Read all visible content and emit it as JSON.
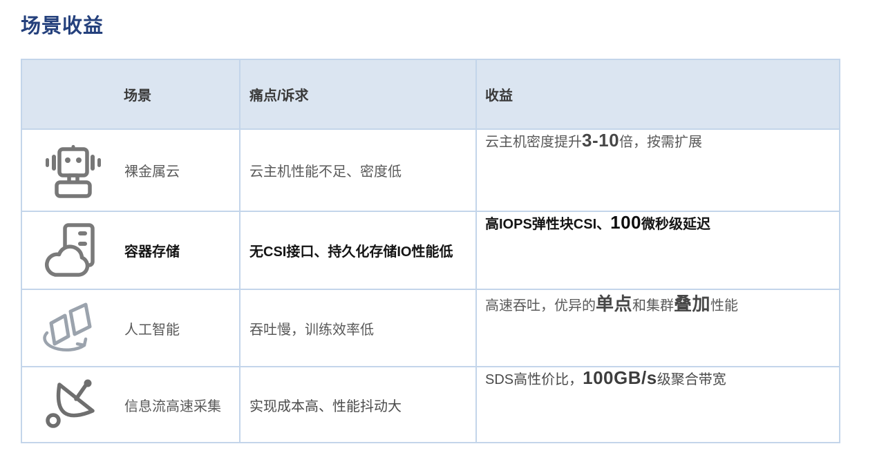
{
  "title": "场景收益",
  "colors": {
    "title": "#24407c",
    "header_bg": "#dbe5f1",
    "border": "#c3d5ea",
    "text_gray": "#595959",
    "text_dark": "#141414",
    "icon_gray": "#777777",
    "icon_light_gray": "#9ba3ad"
  },
  "table": {
    "headers": [
      "场景",
      "痛点/诉求",
      "收益"
    ],
    "rows": [
      {
        "scenario": "裸金属云",
        "icon": "robot-icon",
        "pain": "云主机性能不足、密度低",
        "benefit_segments": [
          {
            "text": "云主机密度提升",
            "bold": false
          },
          {
            "text": "3-10",
            "bold": true
          },
          {
            "text": "倍，按需扩展",
            "bold": false
          }
        ]
      },
      {
        "scenario": "容器存储",
        "icon": "cloud-server-icon",
        "pain": "无CSI接口、持久化存储IO性能低",
        "benefit_segments": [
          {
            "text": "高IOPS弹性块CSI、",
            "bold": false
          },
          {
            "text": "100",
            "bold": true
          },
          {
            "text": "微秒级延迟",
            "bold": false
          }
        ]
      },
      {
        "scenario": "人工智能",
        "icon": "rotating-panels-icon",
        "pain": "吞吐慢，训练效率低",
        "benefit_segments": [
          {
            "text": "高速吞吐，优异的",
            "bold": false
          },
          {
            "text": "单点",
            "bold": true
          },
          {
            "text": "和集群",
            "bold": false
          },
          {
            "text": "叠加",
            "bold": true
          },
          {
            "text": "性能",
            "bold": false
          }
        ]
      },
      {
        "scenario": "信息流高速采集",
        "icon": "satellite-dish-icon",
        "pain": "实现成本高、性能抖动大",
        "benefit_segments": [
          {
            "text": "SDS高性价比，",
            "bold": false
          },
          {
            "text": "100GB/s",
            "bold": true
          },
          {
            "text": "级聚合带宽",
            "bold": false
          }
        ]
      }
    ]
  }
}
